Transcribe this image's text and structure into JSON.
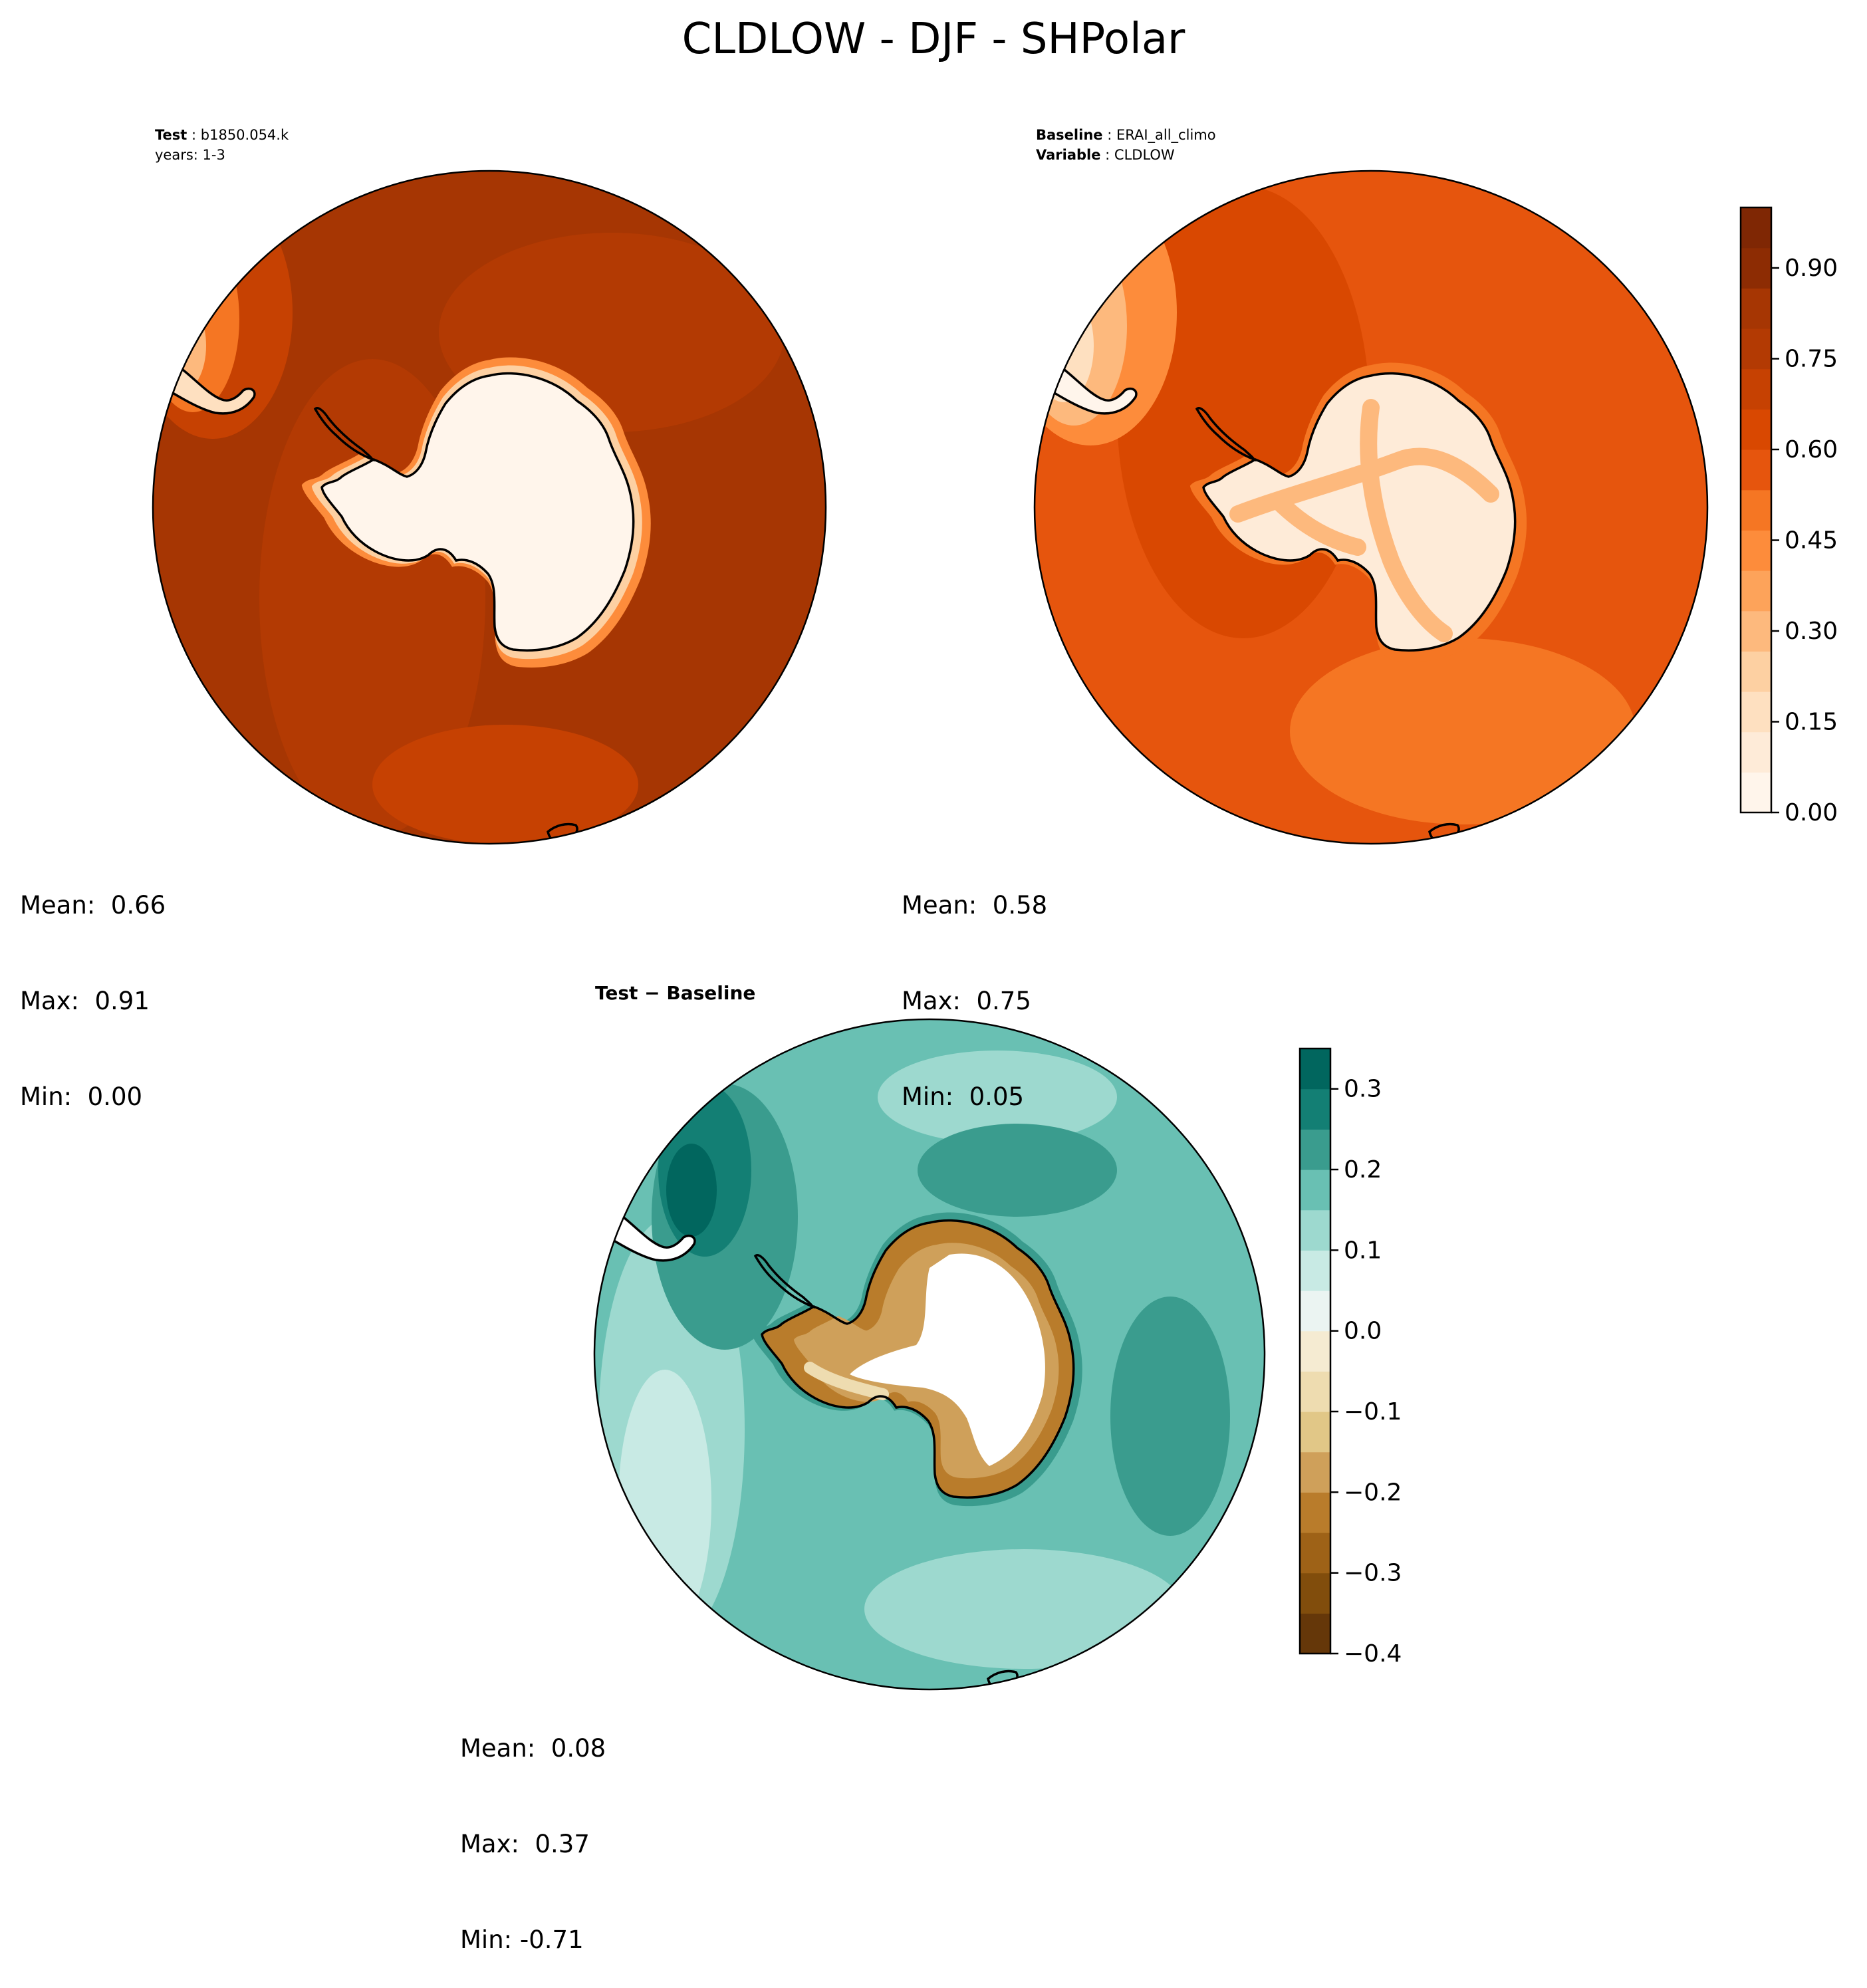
{
  "figure": {
    "title": "CLDLOW - DJF - SHPolar",
    "test_header": {
      "label": "Test",
      "value": "b1850.054.k",
      "years": "years: 1-3"
    },
    "baseline_header": {
      "label": "Baseline",
      "value": "ERAI_all_climo",
      "var_label": "Variable",
      "var_value": "CLDLOW"
    },
    "diff_title": "Test − Baseline"
  },
  "colors": {
    "oranges": [
      "#fff5eb",
      "#feebd8",
      "#fee0c0",
      "#fdd0a2",
      "#fdb97d",
      "#fda35a",
      "#fd8c3b",
      "#f57623",
      "#e6550d",
      "#d94801",
      "#c64102",
      "#b33a03",
      "#a63603",
      "#8d2c03",
      "#7f2704"
    ],
    "brbg_neg": [
      "#653709",
      "#814d0c",
      "#9e6217",
      "#b97c2b",
      "#cfa05a",
      "#e1c787",
      "#eedcb0",
      "#f5ebd2"
    ],
    "brbg_pos": [
      "#ebf4f2",
      "#c8eae4",
      "#9dd9cf",
      "#69c0b3",
      "#3a9c8e",
      "#137f74",
      "#01665e",
      "#003c30"
    ],
    "coastline": "#000000",
    "ice_white": "#ffffff"
  },
  "chart_data": [
    {
      "type": "heatmap",
      "name": "Test",
      "projection": "south polar stereographic",
      "mean": 0.66,
      "max": 0.91,
      "min": 0.0,
      "stats_text": [
        "Mean:  0.66",
        "Max:  0.91",
        "Min:  0.00"
      ],
      "field_description": {
        "ocean_level": 0.85,
        "continent_level": 0.02
      }
    },
    {
      "type": "heatmap",
      "name": "Baseline",
      "projection": "south polar stereographic",
      "mean": 0.58,
      "max": 0.75,
      "min": 0.05,
      "stats_text": [
        "Mean:  0.58",
        "Max:  0.75",
        "Min:  0.05"
      ],
      "colorbar": {
        "range": [
          0.0,
          1.0
        ],
        "levels": 15,
        "ticks": [
          0.0,
          0.15,
          0.3,
          0.45,
          0.6,
          0.75,
          0.9
        ],
        "tick_labels": [
          "0.00",
          "0.15",
          "0.30",
          "0.45",
          "0.60",
          "0.75",
          "0.90"
        ]
      }
    },
    {
      "type": "heatmap",
      "name": "Test − Baseline",
      "projection": "south polar stereographic",
      "mean": 0.08,
      "max": 0.37,
      "min": -0.71,
      "stats_text": [
        "Mean:  0.08",
        "Max:  0.37",
        "Min: -0.71"
      ],
      "colorbar": {
        "range": [
          -0.4,
          0.35
        ],
        "levels": [
          -0.4,
          -0.35,
          -0.3,
          -0.25,
          -0.2,
          -0.15,
          -0.1,
          -0.05,
          0.0,
          0.05,
          0.1,
          0.15,
          0.2,
          0.25,
          0.3,
          0.35
        ],
        "ticks": [
          -0.4,
          -0.3,
          -0.2,
          -0.1,
          0.0,
          0.1,
          0.2,
          0.3
        ],
        "tick_labels": [
          "−0.4",
          "−0.3",
          "−0.2",
          "−0.1",
          "0.0",
          "0.1",
          "0.2",
          "0.3"
        ]
      }
    }
  ]
}
